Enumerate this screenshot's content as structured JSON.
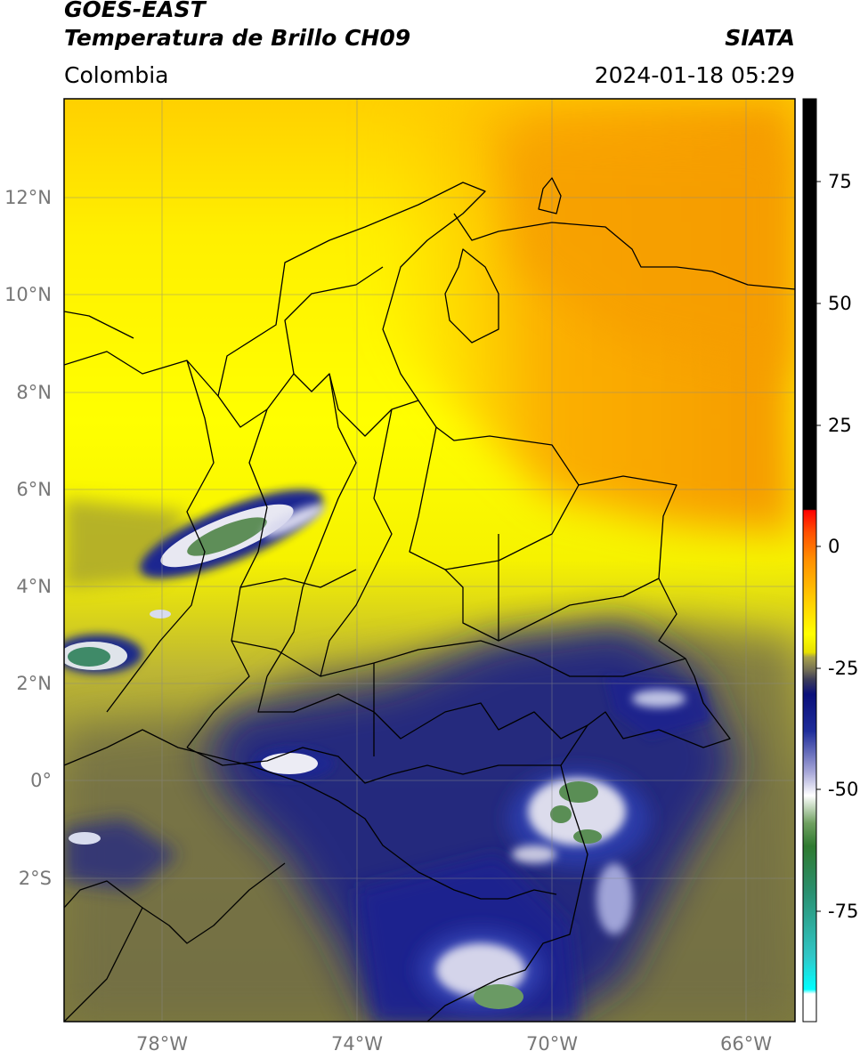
{
  "header": {
    "satellite": "GOES-EAST",
    "product": "Temperatura de Brillo CH09",
    "agency": "SIATA",
    "region": "Colombia",
    "datetime": "2024-01-18 05:29"
  },
  "axes": {
    "lat_labels": [
      "12°N",
      "10°N",
      "8°N",
      "6°N",
      "4°N",
      "2°N",
      "0°",
      "2°S"
    ],
    "lon_labels": [
      "78°W",
      "74°W",
      "70°W",
      "66°W"
    ],
    "lat_values": [
      12,
      10,
      8,
      6,
      4,
      2,
      0,
      -2
    ],
    "lon_values": [
      -78,
      -74,
      -70,
      -66
    ],
    "lon_range": [
      -80,
      -65
    ],
    "lat_range": [
      -5.2,
      14
    ],
    "grid": true
  },
  "colorbar": {
    "ticks": [
      "75",
      "50",
      "25",
      "0",
      "-25",
      "-50",
      "-75"
    ],
    "tick_values": [
      75,
      50,
      25,
      0,
      -25,
      -50,
      -75
    ],
    "range": [
      -94,
      90
    ]
  },
  "colors": {
    "warm_orange": "#f5a000",
    "yellow": "#ffff00",
    "olive": "#8e8a3a",
    "navy": "#1a1f7a",
    "cloud_white": "#f0f0f0",
    "cloud_green": "#4f8a4f",
    "cloud_cyan": "#30d0c0",
    "red": "#ff2000",
    "black": "#000000"
  }
}
